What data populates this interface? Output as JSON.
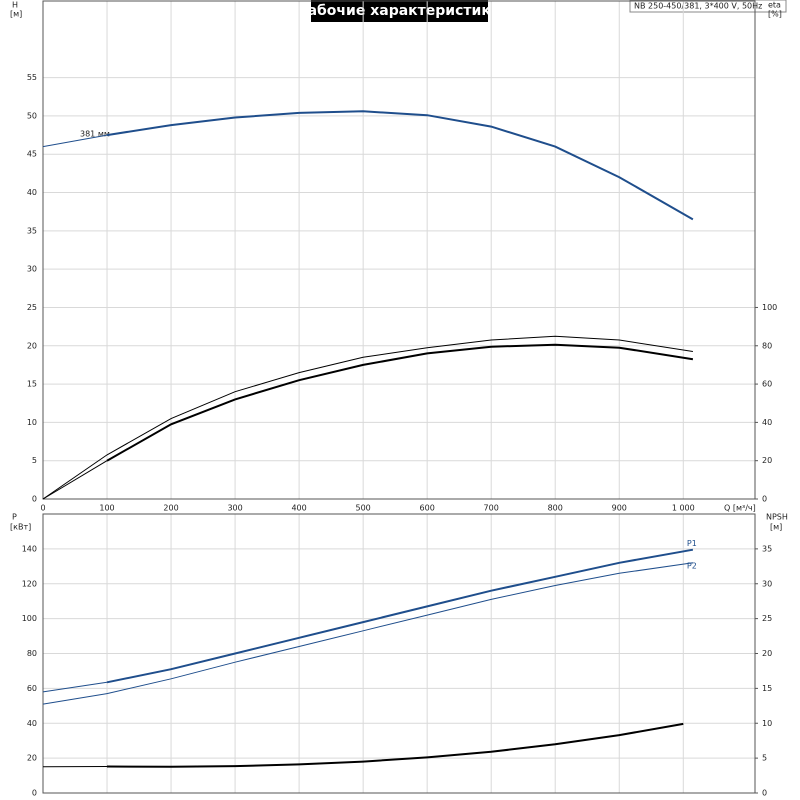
{
  "chart_data": [
    {
      "type": "line",
      "title": "Рабочие характеристики",
      "subtitle": "NB 250-450/381, 3*400 V, 50Hz",
      "xlabel": "Q [м³/ч]",
      "ylabel": "H",
      "yunit": "[м]",
      "y2label": "eta",
      "y2unit": "[%]",
      "annotation": "381 мм",
      "xlim": [
        0,
        1112
      ],
      "xticks": [
        0,
        100,
        200,
        300,
        400,
        500,
        600,
        700,
        800,
        900,
        {
          "value": 1000,
          "label": "1 000"
        }
      ],
      "ylim": [
        0,
        65
      ],
      "yticks": [
        0,
        5,
        10,
        15,
        20,
        25,
        30,
        35,
        40,
        45,
        50,
        55
      ],
      "y2lim": [
        0,
        260
      ],
      "y2ticks": [
        0,
        20,
        40,
        60,
        80,
        100
      ],
      "grid": true,
      "series": [
        {
          "color": "#1f4e8c",
          "width": 1,
          "x": [
            0,
            100
          ],
          "values": [
            46,
            47.5
          ]
        },
        {
          "color": "#1f4e8c",
          "width": 2,
          "x": [
            100,
            200,
            300,
            400,
            500,
            600,
            700,
            800,
            900,
            1015
          ],
          "values": [
            47.5,
            48.8,
            49.8,
            50.4,
            50.6,
            50.1,
            48.6,
            46,
            42,
            36.5
          ]
        },
        {
          "color": "#000000",
          "width": 1,
          "axis": "y2",
          "x": [
            0,
            100,
            200,
            300,
            400,
            500,
            600,
            700,
            800,
            900,
            1015
          ],
          "values": [
            0,
            23,
            42,
            56,
            66,
            74,
            79,
            83,
            85,
            83,
            77
          ]
        },
        {
          "color": "#000000",
          "width": 1,
          "axis": "y2",
          "x": [
            0,
            100
          ],
          "values": [
            0,
            20
          ]
        },
        {
          "color": "#000000",
          "width": 2,
          "axis": "y2",
          "x": [
            100,
            200,
            300,
            400,
            500,
            600,
            700,
            800,
            900,
            1015
          ],
          "values": [
            20,
            39,
            52,
            62,
            70,
            76,
            79.5,
            80.5,
            79,
            73
          ]
        }
      ]
    },
    {
      "type": "line",
      "ylabel": "P",
      "yunit": "[кВт]",
      "y2label": "NPSH",
      "y2unit": "[м]",
      "xlim": [
        0,
        1112
      ],
      "ylim": [
        0,
        160
      ],
      "yticks": [
        0,
        20,
        40,
        60,
        80,
        100,
        120,
        140
      ],
      "y2lim": [
        0,
        40
      ],
      "y2ticks": [
        0,
        5,
        10,
        15,
        20,
        25,
        30,
        35
      ],
      "grid": true,
      "series": [
        {
          "color": "#1f4e8c",
          "width": 1,
          "x": [
            0,
            100
          ],
          "values": [
            58,
            63.5
          ]
        },
        {
          "name": "P1",
          "color": "#1f4e8c",
          "width": 2,
          "x": [
            100,
            200,
            300,
            400,
            500,
            600,
            700,
            800,
            900,
            1015
          ],
          "values": [
            63.5,
            71,
            80,
            89,
            98,
            107,
            116,
            124,
            132,
            139.5
          ]
        },
        {
          "color": "#1f4e8c",
          "width": 1,
          "x": [
            0,
            100
          ],
          "values": [
            51,
            57
          ]
        },
        {
          "name": "P2",
          "color": "#1f4e8c",
          "width": 1,
          "x": [
            100,
            200,
            300,
            400,
            500,
            600,
            700,
            800,
            900,
            1015
          ],
          "values": [
            57,
            65.5,
            75,
            84,
            93,
            102,
            111,
            119,
            126,
            132
          ]
        },
        {
          "color": "#000000",
          "width": 1,
          "axis": "y2",
          "x": [
            0,
            100
          ],
          "values": [
            3.75,
            3.8
          ]
        },
        {
          "color": "#000000",
          "width": 2,
          "axis": "y2",
          "x": [
            100,
            200,
            300,
            400,
            500,
            600,
            700,
            800,
            900,
            1000
          ],
          "values": [
            3.8,
            3.75,
            3.85,
            4.1,
            4.5,
            5.1,
            5.9,
            7.0,
            8.3,
            9.9
          ]
        }
      ]
    }
  ]
}
